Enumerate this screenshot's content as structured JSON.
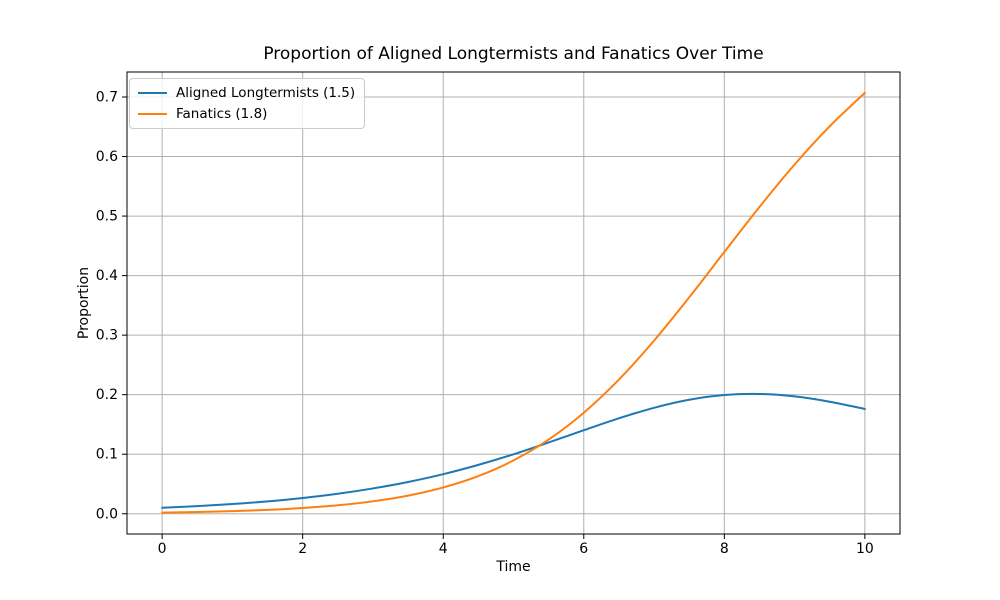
{
  "figure": {
    "title": "Proportion of Aligned Longtermists and Fanatics Over Time",
    "xlabel": "Time",
    "ylabel": "Proportion"
  },
  "colors": {
    "background": "#ffffff",
    "grid": "#b0b0b0",
    "spine": "#000000",
    "tick_label": "#000000",
    "series_blue": "#1f77b4",
    "series_orange": "#ff7f0e"
  },
  "chart_data": {
    "type": "line",
    "title": "Proportion of Aligned Longtermists and Fanatics Over Time",
    "xlabel": "Time",
    "ylabel": "Proportion",
    "xlim": [
      -0.5,
      10.5
    ],
    "ylim": [
      -0.034,
      0.742
    ],
    "grid": true,
    "legend_position": "upper left",
    "xticks": [
      0,
      2,
      4,
      6,
      8,
      10
    ],
    "xtick_labels": [
      "0",
      "2",
      "4",
      "6",
      "8",
      "10"
    ],
    "yticks": [
      0.0,
      0.1,
      0.2,
      0.3,
      0.4,
      0.5,
      0.6,
      0.7
    ],
    "ytick_labels": [
      "0.0",
      "0.1",
      "0.2",
      "0.3",
      "0.4",
      "0.5",
      "0.6",
      "0.7"
    ],
    "x": [
      0,
      0.5,
      1,
      1.5,
      2,
      2.5,
      3,
      3.5,
      4,
      4.5,
      5,
      5.5,
      6,
      6.5,
      7,
      7.5,
      8,
      8.5,
      9,
      9.5,
      10
    ],
    "series": [
      {
        "name": "Aligned Longtermists (1.5)",
        "color": "#1f77b4",
        "values": [
          0.01,
          0.0128,
          0.0163,
          0.0208,
          0.0265,
          0.0336,
          0.0425,
          0.0534,
          0.0665,
          0.0821,
          0.0999,
          0.1197,
          0.1403,
          0.1603,
          0.178,
          0.1915,
          0.1994,
          0.2012,
          0.1971,
          0.1882,
          0.176
        ]
      },
      {
        "name": "Fanatics (1.8)",
        "color": "#ff7f0e",
        "values": [
          0.002,
          0.003,
          0.0044,
          0.0065,
          0.0097,
          0.0142,
          0.0209,
          0.0305,
          0.0442,
          0.0633,
          0.0896,
          0.1246,
          0.1697,
          0.2254,
          0.2908,
          0.3634,
          0.4397,
          0.5153,
          0.5866,
          0.6509,
          0.7069
        ]
      }
    ]
  }
}
